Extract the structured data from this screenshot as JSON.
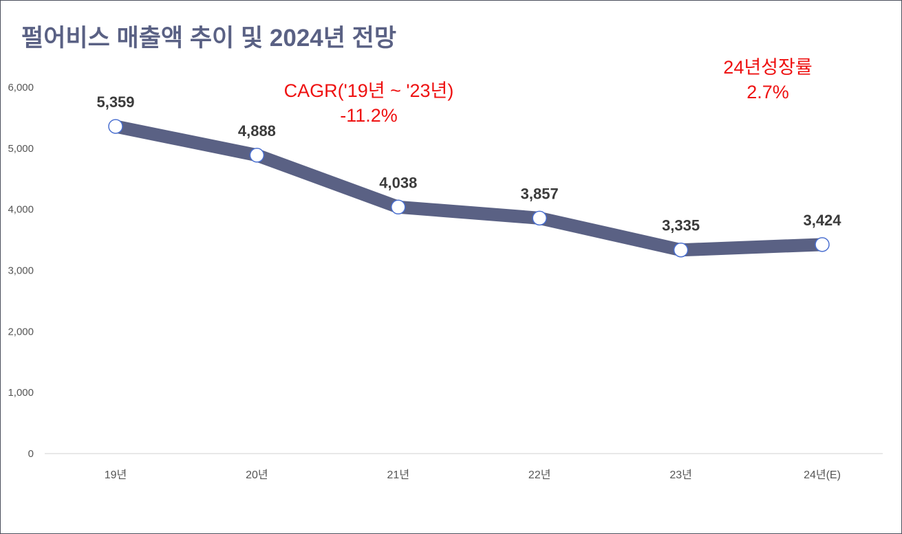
{
  "chart_data": {
    "type": "line",
    "title": "펄어비스 매출액 추이 및 2024년 전망",
    "categories": [
      "19년",
      "20년",
      "21년",
      "22년",
      "23년",
      "24년(E)"
    ],
    "series": [
      {
        "values": [
          5359,
          4888,
          4038,
          3857,
          3335,
          3424
        ]
      }
    ],
    "data_labels": [
      "5,359",
      "4,888",
      "4,038",
      "3,857",
      "3,335",
      "3,424"
    ],
    "yticks": [
      0,
      1000,
      2000,
      3000,
      4000,
      5000,
      6000
    ],
    "ytick_labels": [
      "0",
      "1,000",
      "2,000",
      "3,000",
      "4,000",
      "5,000",
      "6,000"
    ],
    "ylim": [
      0,
      6000
    ],
    "grid": false,
    "colors": {
      "line": "#5a6184",
      "marker_fill": "#ffffff",
      "marker_stroke": "#4a6fd0",
      "title": "#5a6184",
      "annotation": "#ee1111"
    },
    "annotations": [
      {
        "line1": "CAGR('19년 ~ '23년)",
        "line2": "-11.2%"
      },
      {
        "line1": "24년성장률",
        "line2": "2.7%"
      }
    ]
  }
}
